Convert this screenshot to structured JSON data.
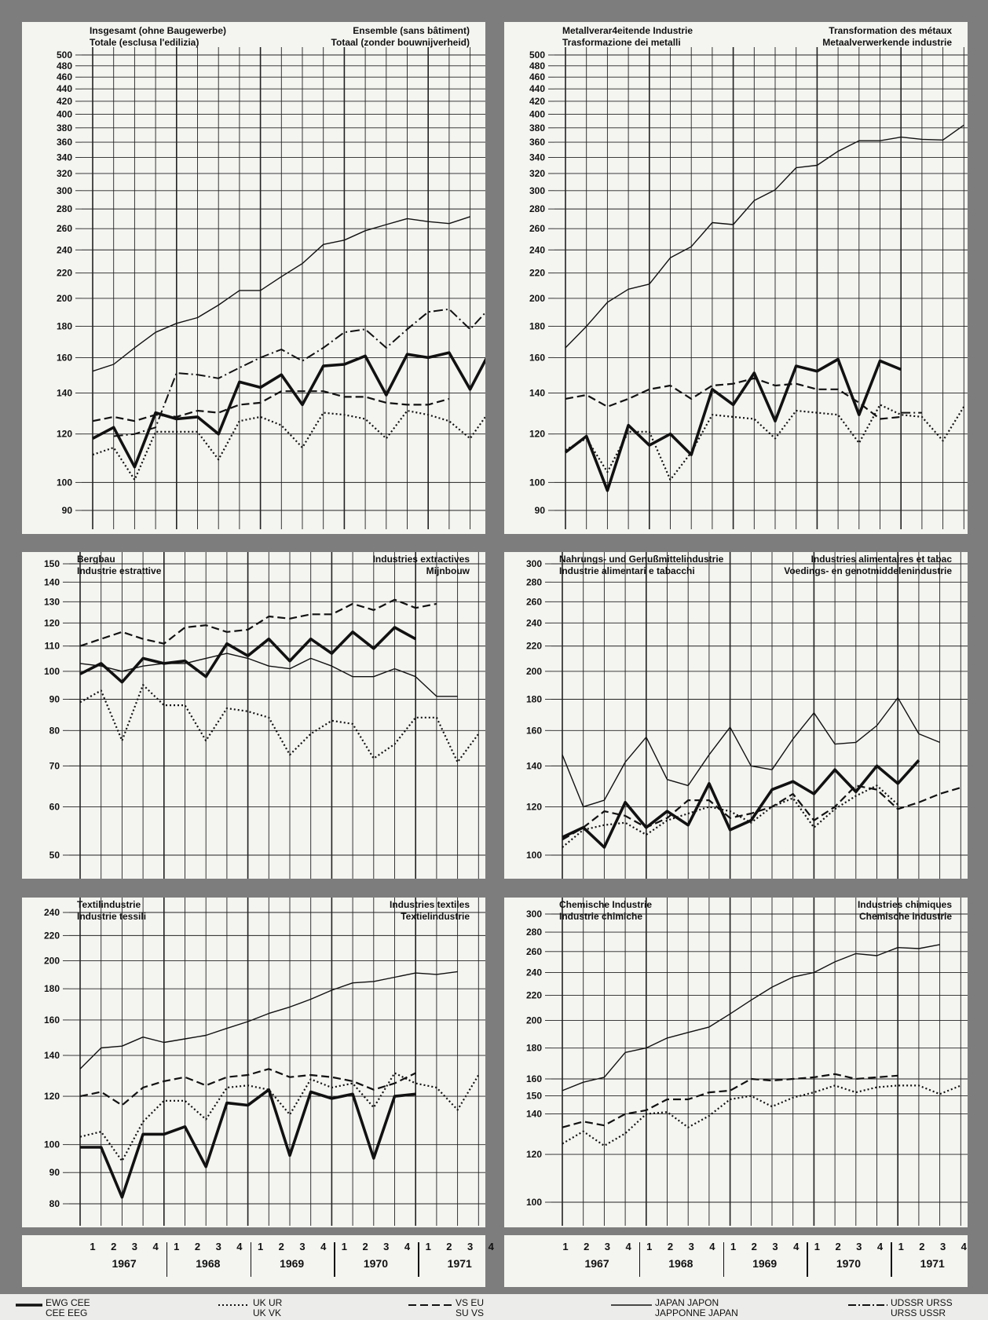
{
  "legend": {
    "eec": {
      "a": "EWG CEE",
      "b": "CEE EEG"
    },
    "uk": {
      "a": "UK UR",
      "b": "UK VK"
    },
    "us": {
      "a": "VS EU",
      "b": "SU VS"
    },
    "jp": {
      "a": "JAPAN JAPON",
      "b": "JAPPONNE JAPAN"
    },
    "ussr": {
      "a": "UDSSR URSS",
      "b": "URSS USSR"
    }
  },
  "quarters": [
    "1",
    "2",
    "3",
    "4"
  ],
  "years": [
    "1967",
    "1968",
    "1969",
    "1970",
    "1971"
  ],
  "chart_data": [
    {
      "type": "line",
      "title_left": [
        "Insgesamt (ohne Baugewerbe)",
        "Totale (esclusa l'edilizia)"
      ],
      "title_right": [
        "Ensemble (sans bâtiment)",
        "Totaal (zonder bouwnijverheid)"
      ],
      "scale": "log",
      "ylim": [
        85,
        500
      ],
      "yticks": [
        90,
        100,
        120,
        140,
        160,
        180,
        200,
        220,
        240,
        260,
        280,
        300,
        320,
        340,
        360,
        380,
        400,
        420,
        440,
        460,
        480,
        500
      ],
      "x": "quarters 1967Q1–1971Q4",
      "series": [
        {
          "key": "eec",
          "values": [
            118,
            123,
            106,
            130,
            127,
            128,
            120,
            146,
            143,
            150,
            134,
            155,
            156,
            161,
            139,
            162,
            160,
            163,
            142,
            165
          ]
        },
        {
          "key": "uk",
          "values": [
            111,
            114,
            101,
            121,
            121,
            121,
            109,
            126,
            128,
            124,
            114,
            130,
            129,
            127,
            118,
            131,
            129,
            126,
            118,
            132
          ]
        },
        {
          "key": "us",
          "values": [
            126,
            128,
            126,
            129,
            128,
            131,
            130,
            134,
            135,
            141,
            141,
            141,
            138,
            138,
            135,
            134,
            134,
            137,
            null,
            null
          ]
        },
        {
          "key": "jp",
          "values": [
            152,
            156,
            166,
            176,
            182,
            186,
            195,
            206,
            206,
            217,
            228,
            245,
            249,
            258,
            264,
            270,
            267,
            265,
            272,
            null
          ]
        },
        {
          "key": "ussr",
          "values": [
            null,
            119,
            120,
            123,
            151,
            150,
            148,
            154,
            160,
            165,
            158,
            166,
            176,
            178,
            166,
            178,
            190,
            192,
            178,
            194
          ]
        }
      ]
    },
    {
      "type": "line",
      "title_left": [
        "Metallverar4eitende Industrie",
        "Trasformazione dei metalli"
      ],
      "title_right": [
        "Transformation des métaux",
        "Metaalverwerkende industrie"
      ],
      "scale": "log",
      "ylim": [
        85,
        500
      ],
      "yticks": [
        90,
        100,
        120,
        140,
        160,
        180,
        200,
        220,
        240,
        260,
        280,
        300,
        320,
        340,
        360,
        380,
        400,
        420,
        440,
        460,
        480,
        500
      ],
      "x": "quarters 1967Q1–1971Q4",
      "series": [
        {
          "key": "eec",
          "values": [
            112,
            119,
            97,
            124,
            115,
            120,
            111,
            142,
            134,
            151,
            126,
            155,
            152,
            159,
            129,
            158,
            153,
            null,
            null,
            null
          ]
        },
        {
          "key": "uk",
          "values": [
            113,
            118,
            104,
            121,
            121,
            101,
            112,
            129,
            128,
            127,
            118,
            131,
            130,
            129,
            116,
            134,
            129,
            128,
            117,
            133
          ]
        },
        {
          "key": "us",
          "values": [
            137,
            139,
            133,
            137,
            142,
            144,
            137,
            144,
            145,
            148,
            144,
            145,
            142,
            142,
            135,
            127,
            128,
            null,
            null,
            null
          ]
        },
        {
          "key": "jp",
          "values": [
            166,
            180,
            197,
            207,
            211,
            233,
            243,
            266,
            264,
            289,
            301,
            327,
            330,
            348,
            362,
            362,
            367,
            364,
            363,
            384
          ]
        },
        {
          "key": "ussr",
          "values": [
            null,
            null,
            null,
            null,
            null,
            null,
            null,
            null,
            null,
            null,
            null,
            null,
            null,
            null,
            null,
            null,
            130,
            130,
            null,
            null
          ]
        }
      ]
    },
    {
      "type": "line",
      "title_left": [
        "Bergbau",
        "Industrie estrattive"
      ],
      "title_right": [
        "Industries extractives",
        "Mijnbouw"
      ],
      "scale": "log",
      "ylim": [
        48,
        150
      ],
      "yticks": [
        50,
        60,
        70,
        80,
        90,
        100,
        110,
        120,
        130,
        140,
        150
      ],
      "x": "quarters 1967Q1–1971Q4",
      "series": [
        {
          "key": "eec",
          "values": [
            99,
            103,
            96,
            105,
            103,
            104,
            98,
            111,
            106,
            113,
            104,
            113,
            107,
            116,
            109,
            118,
            113,
            null,
            null,
            null
          ]
        },
        {
          "key": "uk",
          "values": [
            89,
            93,
            77,
            95,
            88,
            88,
            77,
            87,
            86,
            84,
            73,
            79,
            83,
            82,
            72,
            76,
            84,
            84,
            71,
            79
          ]
        },
        {
          "key": "us",
          "values": [
            110,
            113,
            116,
            113,
            111,
            118,
            119,
            116,
            117,
            123,
            122,
            124,
            124,
            129,
            126,
            131,
            127,
            129,
            null,
            null
          ]
        },
        {
          "key": "jp",
          "values": [
            103,
            102,
            100,
            102,
            103,
            103,
            105,
            107,
            105,
            102,
            101,
            105,
            102,
            98,
            98,
            101,
            98,
            91,
            91,
            null
          ]
        }
      ]
    },
    {
      "type": "line",
      "title_left": [
        "Nahrungs- und Genußmittelindustrie",
        "Industrie alimentari e tabacchi"
      ],
      "title_right": [
        "Industries alimentaires et tabac",
        "Voedings- en genotmiddelenindustrie"
      ],
      "scale": "log",
      "ylim": [
        97,
        300
      ],
      "yticks": [
        100,
        120,
        140,
        160,
        180,
        200,
        220,
        240,
        260,
        280,
        300
      ],
      "x": "quarters 1967Q1–1971Q4",
      "series": [
        {
          "key": "eec",
          "values": [
            107,
            111,
            103,
            122,
            111,
            118,
            112,
            131,
            110,
            114,
            128,
            132,
            126,
            138,
            127,
            140,
            131,
            143,
            null,
            null
          ]
        },
        {
          "key": "uk",
          "values": [
            103,
            110,
            112,
            113,
            108,
            114,
            117,
            120,
            118,
            113,
            120,
            124,
            111,
            119,
            125,
            130,
            121,
            null,
            null,
            null
          ]
        },
        {
          "key": "us",
          "values": [
            106,
            111,
            118,
            116,
            111,
            115,
            123,
            123,
            115,
            117,
            120,
            126,
            114,
            120,
            130,
            128,
            119,
            122,
            126,
            129
          ]
        },
        {
          "key": "jp",
          "values": [
            146,
            120,
            123,
            142,
            156,
            133,
            130,
            146,
            162,
            140,
            138,
            155,
            171,
            152,
            153,
            163,
            181,
            158,
            153,
            null
          ]
        }
      ]
    },
    {
      "type": "line",
      "title_left": [
        "Textilindustrie",
        "Industrie tessili"
      ],
      "title_right": [
        "Industries textiles",
        "Textielindustrie"
      ],
      "scale": "log",
      "ylim": [
        78,
        245
      ],
      "yticks": [
        80,
        90,
        100,
        120,
        140,
        160,
        180,
        200,
        220,
        240
      ],
      "x": "quarters 1967Q1–1971Q4",
      "series": [
        {
          "key": "eec",
          "values": [
            99,
            99,
            82,
            104,
            104,
            107,
            92,
            117,
            116,
            123,
            96,
            122,
            119,
            121,
            95,
            120,
            121,
            null,
            null,
            null
          ]
        },
        {
          "key": "uk",
          "values": [
            103,
            105,
            94,
            109,
            118,
            118,
            110,
            124,
            125,
            123,
            112,
            128,
            124,
            126,
            115,
            131,
            126,
            124,
            114,
            130
          ]
        },
        {
          "key": "us",
          "values": [
            120,
            122,
            116,
            124,
            127,
            129,
            125,
            129,
            130,
            133,
            129,
            130,
            129,
            127,
            123,
            126,
            131,
            null,
            null,
            null
          ]
        },
        {
          "key": "jp",
          "values": [
            133,
            144,
            145,
            150,
            147,
            149,
            151,
            155,
            159,
            164,
            168,
            173,
            179,
            184,
            185,
            188,
            191,
            190,
            192,
            null
          ]
        }
      ]
    },
    {
      "type": "line",
      "title_left": [
        "Chemische Industrie",
        "Industrie chimiche"
      ],
      "title_right": [
        "Industries chimiques",
        "Chemische industrie"
      ],
      "scale": "log",
      "ylim": [
        97,
        300
      ],
      "yticks": [
        100,
        120,
        140,
        150,
        160,
        180,
        200,
        220,
        240,
        260,
        280,
        300
      ],
      "x": "quarters 1967Q1–1971Q4",
      "series": [
        {
          "key": "uk",
          "values": [
            125,
            131,
            124,
            130,
            140,
            141,
            133,
            139,
            148,
            150,
            144,
            149,
            152,
            156,
            152,
            155,
            156,
            156,
            151,
            156
          ]
        },
        {
          "key": "us",
          "values": [
            133,
            136,
            134,
            140,
            142,
            148,
            148,
            152,
            153,
            160,
            159,
            160,
            161,
            163,
            160,
            161,
            162,
            null,
            null,
            null
          ]
        },
        {
          "key": "jp",
          "values": [
            153,
            158,
            161,
            177,
            180,
            187,
            191,
            195,
            205,
            216,
            227,
            236,
            240,
            250,
            258,
            256,
            264,
            263,
            267,
            null
          ]
        }
      ]
    }
  ]
}
